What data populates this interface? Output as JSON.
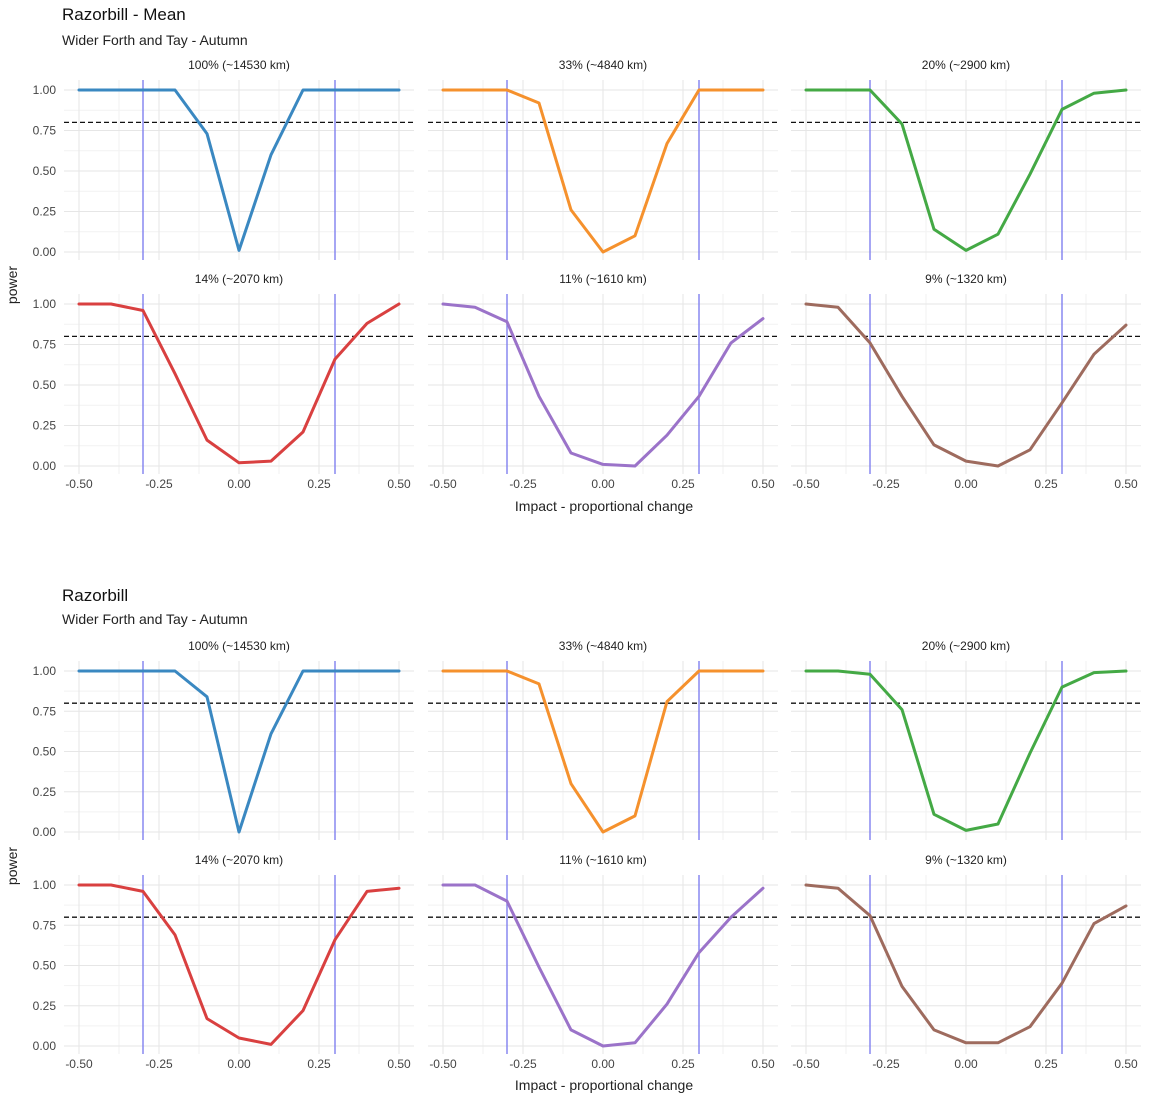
{
  "chart_data": [
    {
      "type": "line",
      "title": "Razorbill - Mean",
      "subtitle": "Wider Forth and Tay - Autumn",
      "xlabel": "Impact - proportional change",
      "ylabel": "power",
      "xlim": [
        -0.5,
        0.5
      ],
      "ylim": [
        0,
        1
      ],
      "x_ticks": [
        "-0.50",
        "-0.25",
        "0.00",
        "0.25",
        "0.50"
      ],
      "y_ticks": [
        "0.00",
        "0.25",
        "0.50",
        "0.75",
        "1.00"
      ],
      "x": [
        -0.5,
        -0.4,
        -0.3,
        -0.2,
        -0.1,
        0.0,
        0.1,
        0.2,
        0.3,
        0.4,
        0.5
      ],
      "reference_hline": 0.8,
      "reference_vlines": [
        -0.3,
        0.3
      ],
      "grid": true,
      "legend": "none",
      "panels": [
        {
          "label": "100% (~14530 km)",
          "color": "#3a88c1",
          "values": [
            1.0,
            1.0,
            1.0,
            1.0,
            0.73,
            0.01,
            0.6,
            1.0,
            1.0,
            1.0,
            1.0
          ]
        },
        {
          "label": "33% (~4840 km)",
          "color": "#f5912d",
          "values": [
            1.0,
            1.0,
            1.0,
            0.92,
            0.26,
            0.0,
            0.1,
            0.67,
            1.0,
            1.0,
            1.0
          ]
        },
        {
          "label": "20% (~2900 km)",
          "color": "#44a945",
          "values": [
            1.0,
            1.0,
            1.0,
            0.79,
            0.14,
            0.01,
            0.11,
            0.48,
            0.88,
            0.98,
            1.0
          ]
        },
        {
          "label": "14% (~2070 km)",
          "color": "#d94040",
          "values": [
            1.0,
            1.0,
            0.96,
            0.57,
            0.16,
            0.02,
            0.03,
            0.21,
            0.66,
            0.88,
            1.0
          ]
        },
        {
          "label": "11% (~1610 km)",
          "color": "#9b73c9",
          "values": [
            1.0,
            0.98,
            0.89,
            0.43,
            0.08,
            0.01,
            0.0,
            0.19,
            0.43,
            0.76,
            0.91
          ]
        },
        {
          "label": "9% (~1320 km)",
          "color": "#9e6b5e",
          "values": [
            1.0,
            0.98,
            0.76,
            0.43,
            0.13,
            0.03,
            0.0,
            0.1,
            0.39,
            0.69,
            0.87
          ]
        }
      ]
    },
    {
      "type": "line",
      "title": "Razorbill",
      "subtitle": "Wider Forth and Tay - Autumn",
      "xlabel": "Impact - proportional change",
      "ylabel": "power",
      "xlim": [
        -0.5,
        0.5
      ],
      "ylim": [
        0,
        1
      ],
      "x_ticks": [
        "-0.50",
        "-0.25",
        "0.00",
        "0.25",
        "0.50"
      ],
      "y_ticks": [
        "0.00",
        "0.25",
        "0.50",
        "0.75",
        "1.00"
      ],
      "x": [
        -0.5,
        -0.4,
        -0.3,
        -0.2,
        -0.1,
        0.0,
        0.1,
        0.2,
        0.3,
        0.4,
        0.5
      ],
      "reference_hline": 0.8,
      "reference_vlines": [
        -0.3,
        0.3
      ],
      "grid": true,
      "legend": "none",
      "panels": [
        {
          "label": "100% (~14530 km)",
          "color": "#3a88c1",
          "values": [
            1.0,
            1.0,
            1.0,
            1.0,
            0.84,
            0.0,
            0.61,
            1.0,
            1.0,
            1.0,
            1.0
          ]
        },
        {
          "label": "33% (~4840 km)",
          "color": "#f5912d",
          "values": [
            1.0,
            1.0,
            1.0,
            0.92,
            0.3,
            0.0,
            0.1,
            0.81,
            1.0,
            1.0,
            1.0
          ]
        },
        {
          "label": "20% (~2900 km)",
          "color": "#44a945",
          "values": [
            1.0,
            1.0,
            0.98,
            0.76,
            0.11,
            0.01,
            0.05,
            0.49,
            0.9,
            0.99,
            1.0
          ]
        },
        {
          "label": "14% (~2070 km)",
          "color": "#d94040",
          "values": [
            1.0,
            1.0,
            0.96,
            0.69,
            0.17,
            0.05,
            0.01,
            0.22,
            0.66,
            0.96,
            0.98
          ]
        },
        {
          "label": "11% (~1610 km)",
          "color": "#9b73c9",
          "values": [
            1.0,
            1.0,
            0.9,
            0.49,
            0.1,
            0.0,
            0.02,
            0.26,
            0.58,
            0.8,
            0.98
          ]
        },
        {
          "label": "9% (~1320 km)",
          "color": "#9e6b5e",
          "values": [
            1.0,
            0.98,
            0.81,
            0.37,
            0.1,
            0.02,
            0.02,
            0.12,
            0.39,
            0.76,
            0.87
          ]
        }
      ]
    }
  ]
}
